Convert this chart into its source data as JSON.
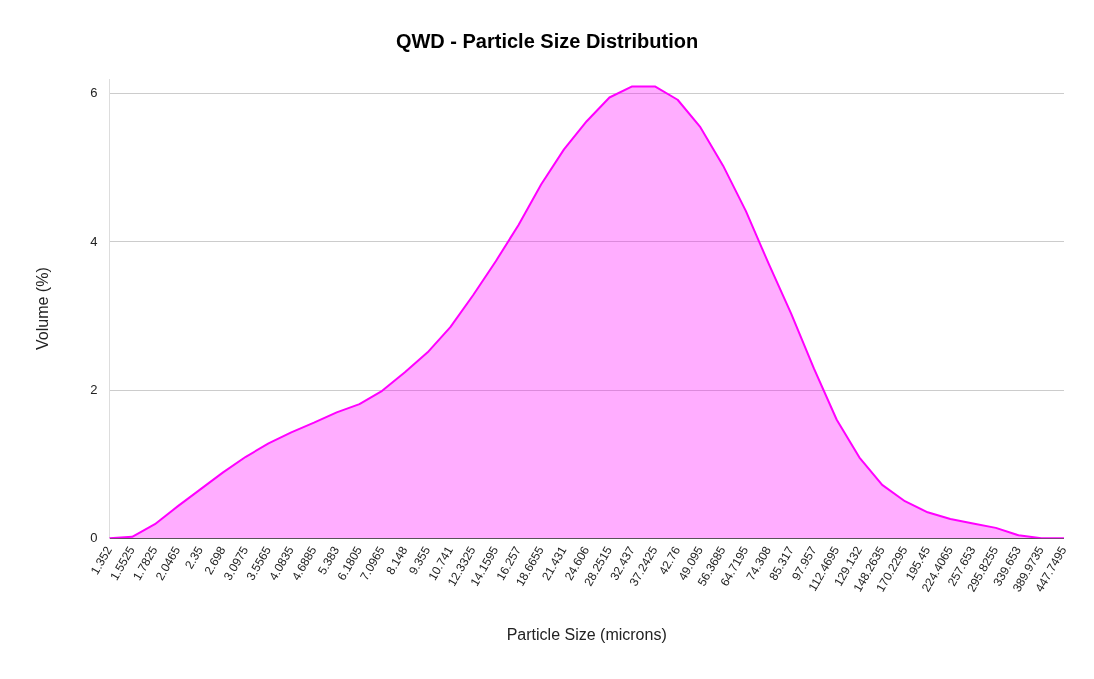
{
  "chart_data": {
    "type": "area",
    "title": "QWD - Particle Size Distribution",
    "xlabel": "Particle Size (microns)",
    "ylabel": "Volume (%)",
    "categories": [
      "1.352",
      "1.5525",
      "1.7825",
      "2.0465",
      "2.35",
      "2.698",
      "3.0975",
      "3.5565",
      "4.0835",
      "4.6885",
      "5.383",
      "6.1805",
      "7.0965",
      "8.148",
      "9.355",
      "10.741",
      "12.3325",
      "14.1595",
      "16.257",
      "18.6655",
      "21.431",
      "24.606",
      "28.2515",
      "32.437",
      "37.2425",
      "42.76",
      "49.095",
      "56.3685",
      "64.7195",
      "74.308",
      "85.317",
      "97.957",
      "112.4695",
      "129.132",
      "148.2635",
      "170.2295",
      "195.45",
      "224.4065",
      "257.653",
      "295.8255",
      "339.653",
      "389.9735",
      "447.7495"
    ],
    "series": [
      {
        "color": "#ff00ff",
        "values": [
          0,
          0.02,
          0.19,
          0.43,
          0.66,
          0.89,
          1.1,
          1.28,
          1.43,
          1.56,
          1.7,
          1.81,
          1.99,
          2.24,
          2.51,
          2.85,
          3.28,
          3.74,
          4.23,
          4.78,
          5.25,
          5.63,
          5.95,
          6.1,
          6.1,
          5.92,
          5.55,
          5.03,
          4.42,
          3.71,
          3.03,
          2.29,
          1.6,
          1.09,
          0.72,
          0.5,
          0.35,
          0.26,
          0.2,
          0.14,
          0.04,
          0,
          0
        ]
      }
    ],
    "ylim": [
      0,
      6.2
    ],
    "yticks": [
      0,
      2,
      4,
      6
    ],
    "grid": "y",
    "legend": false,
    "marker": "none"
  }
}
